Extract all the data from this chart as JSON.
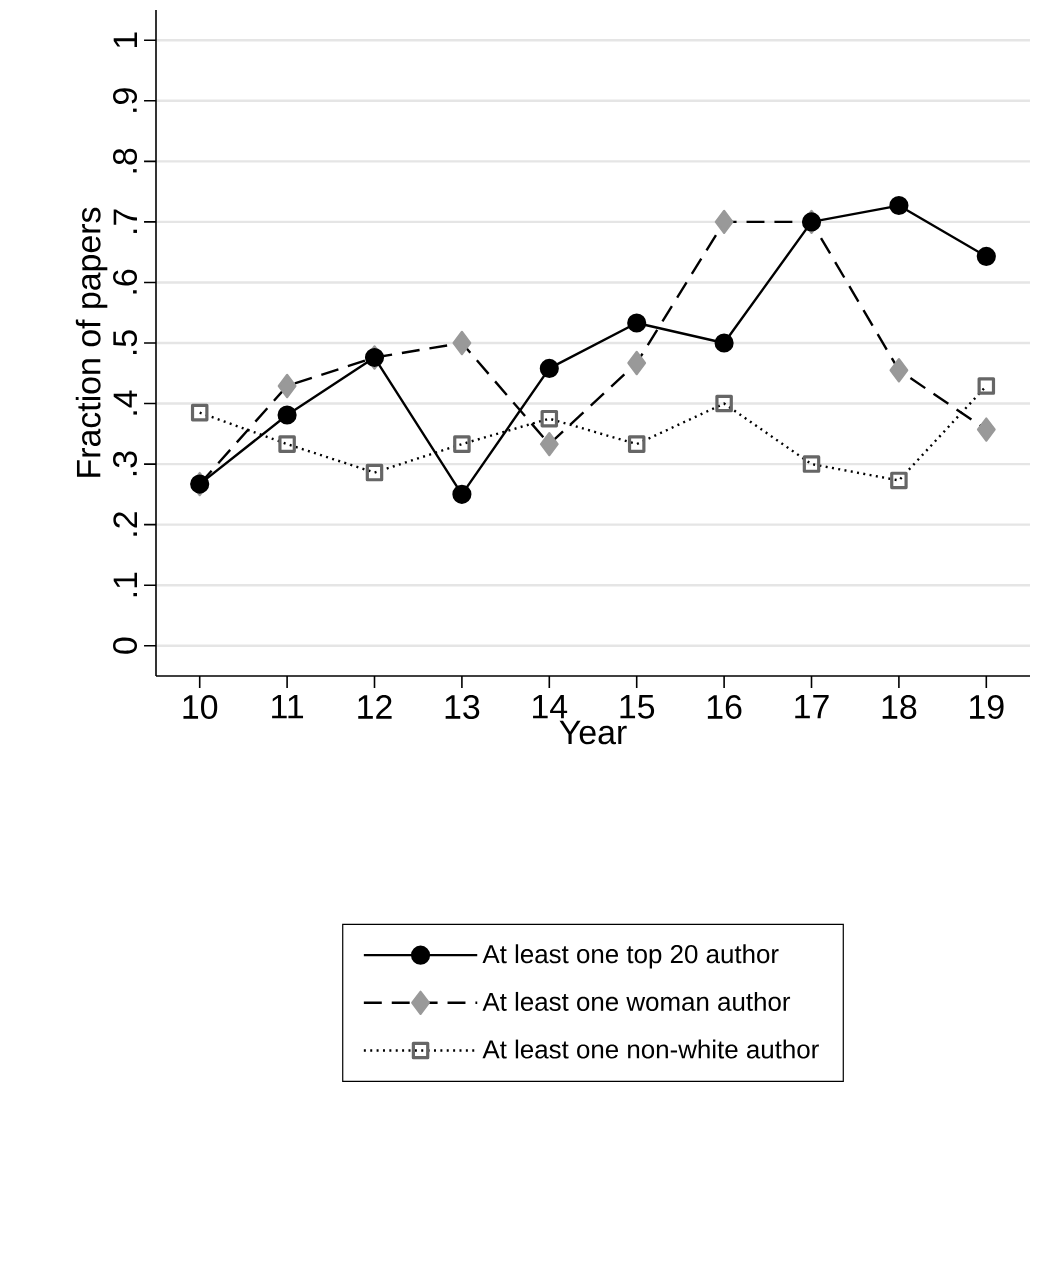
{
  "chart_data": {
    "type": "line",
    "xlabel": "Year",
    "ylabel": "Fraction of papers",
    "x": [
      10,
      11,
      12,
      13,
      14,
      15,
      16,
      17,
      18,
      19
    ],
    "series": [
      {
        "name": "At least one top 20 author",
        "color": "#000000",
        "marker": "circle",
        "line_style": "solid",
        "values": [
          0.267,
          0.381,
          0.476,
          0.25,
          0.458,
          0.533,
          0.5,
          0.7,
          0.727,
          0.643
        ]
      },
      {
        "name": "At least one woman author",
        "color": "#999999",
        "marker": "diamond",
        "line_style": "dashed",
        "values": [
          0.267,
          0.429,
          0.476,
          0.5,
          0.333,
          0.467,
          0.7,
          0.7,
          0.455,
          0.357
        ]
      },
      {
        "name": "At least one non-white author",
        "color": "#666666",
        "marker": "square",
        "line_style": "dotted",
        "values": [
          0.385,
          0.333,
          0.286,
          0.333,
          0.375,
          0.333,
          0.4,
          0.3,
          0.273,
          0.429
        ]
      }
    ],
    "xlim": [
      9.5,
      19.5
    ],
    "xticks": [
      10,
      11,
      12,
      13,
      14,
      15,
      16,
      17,
      18,
      19
    ],
    "ylim": [
      -0.05,
      1.05
    ],
    "yticks": [
      {
        "value": 0,
        "label": "0"
      },
      {
        "value": 0.1,
        "label": ".1"
      },
      {
        "value": 0.2,
        "label": ".2"
      },
      {
        "value": 0.3,
        "label": ".3"
      },
      {
        "value": 0.4,
        "label": ".4"
      },
      {
        "value": 0.5,
        "label": ".5"
      },
      {
        "value": 0.6,
        "label": ".6"
      },
      {
        "value": 0.7,
        "label": ".7"
      },
      {
        "value": 0.8,
        "label": ".8"
      },
      {
        "value": 0.9,
        "label": ".9"
      },
      {
        "value": 1,
        "label": "1"
      }
    ],
    "grid": "y",
    "legend": "bottom"
  }
}
